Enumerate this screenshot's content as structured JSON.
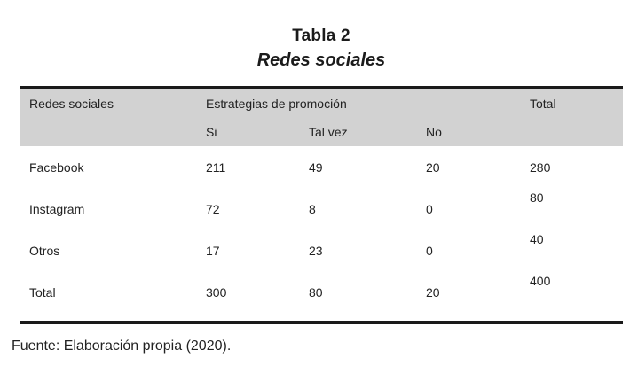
{
  "page": {
    "title": "Tabla 2",
    "subtitle": "Redes sociales",
    "source_note": "Fuente: Elaboración propia (2020)."
  },
  "table": {
    "header": {
      "row_label_col": "Redes sociales",
      "group_col": "Estrategias de promoción",
      "sub_cols": {
        "si": "Si",
        "tal_vez": "Tal vez",
        "no": "No"
      },
      "total_col": "Total"
    },
    "rows": [
      {
        "label": "Facebook",
        "si": "211",
        "tal_vez": "49",
        "no": "20",
        "total": "280"
      },
      {
        "label": "Instagram",
        "si": "72",
        "tal_vez": "8",
        "no": "0",
        "total": "80"
      },
      {
        "label": "Otros",
        "si": "17",
        "tal_vez": "23",
        "no": "0",
        "total": "40"
      },
      {
        "label": "Total",
        "si": "300",
        "tal_vez": "80",
        "no": "20",
        "total": "400"
      }
    ],
    "colors": {
      "header_background": "#d2d2d2",
      "rule": "#1a1a1a",
      "text": "#222222",
      "page_background": "#ffffff"
    }
  }
}
